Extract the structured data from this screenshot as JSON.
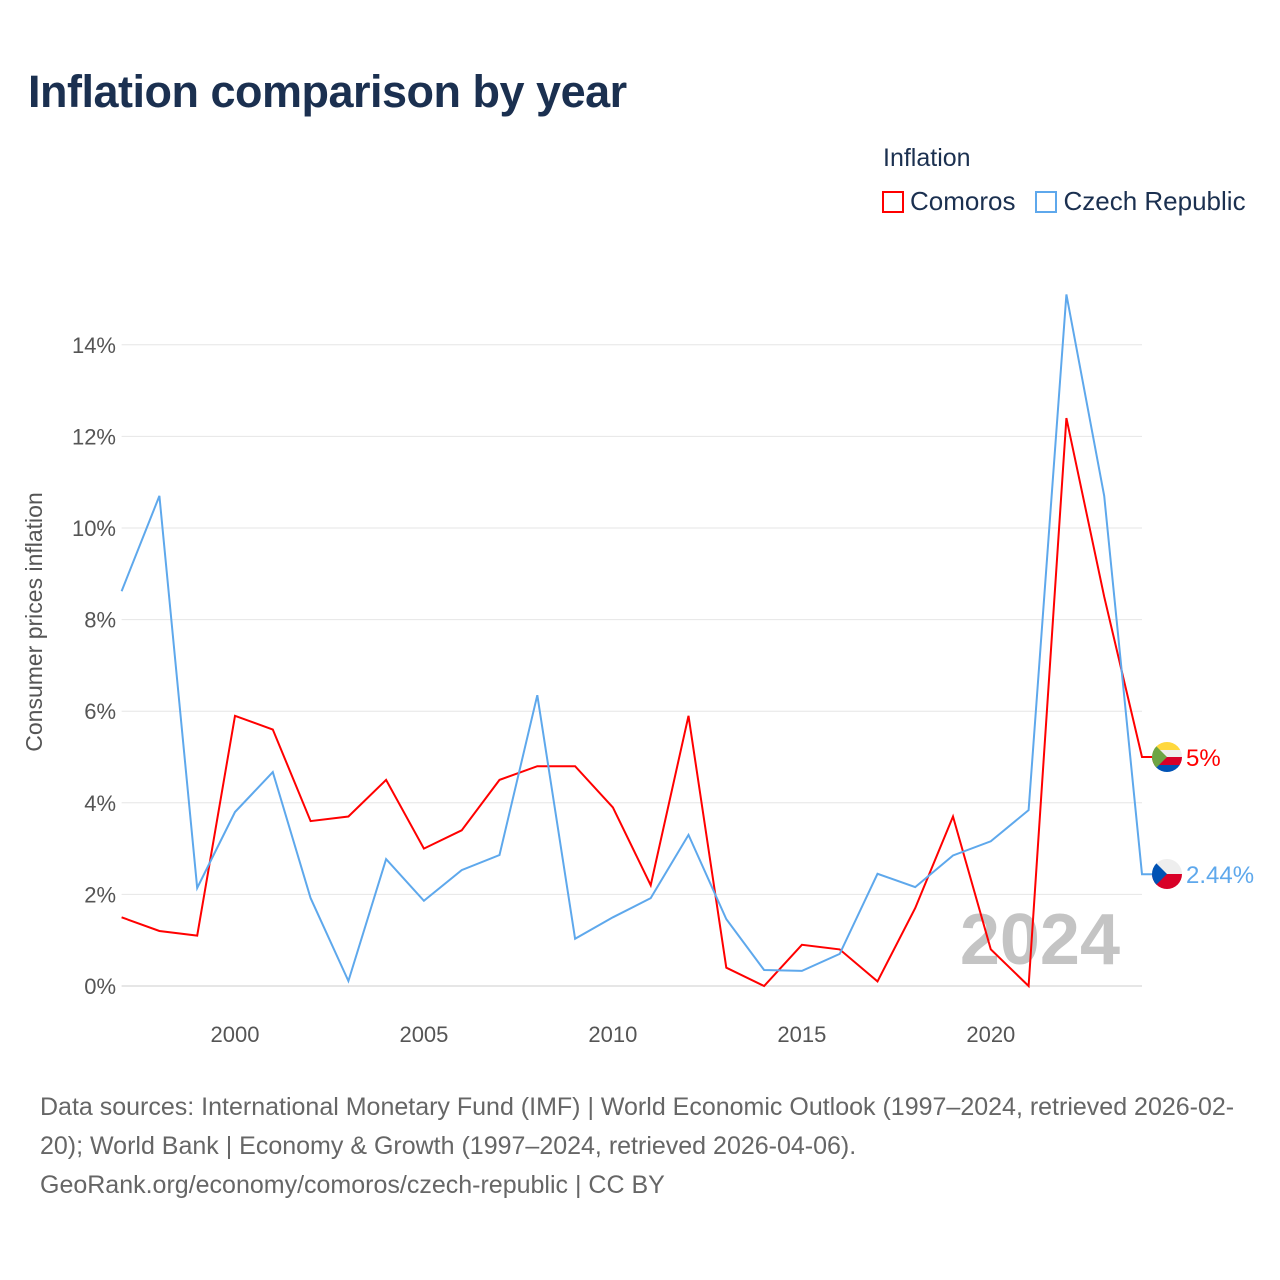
{
  "title": "Inflation comparison by year",
  "legend": {
    "title": "Inflation",
    "items": [
      {
        "name": "Comoros",
        "color": "#ff0000"
      },
      {
        "name": "Czech Republic",
        "color": "#5ea8ec"
      }
    ]
  },
  "chart_data": {
    "type": "line",
    "title": "Inflation comparison by year",
    "xlabel": "",
    "ylabel": "Consumer prices inflation",
    "x": [
      1997,
      1998,
      1999,
      2000,
      2001,
      2002,
      2003,
      2004,
      2005,
      2006,
      2007,
      2008,
      2009,
      2010,
      2011,
      2012,
      2013,
      2014,
      2015,
      2016,
      2017,
      2018,
      2019,
      2020,
      2021,
      2022,
      2023,
      2024
    ],
    "xlim": [
      1997,
      2024
    ],
    "ylim": [
      0,
      15.5
    ],
    "x_ticks": [
      2000,
      2005,
      2010,
      2015,
      2020
    ],
    "y_ticks": [
      0,
      2,
      4,
      6,
      8,
      10,
      12,
      14
    ],
    "y_tick_labels": [
      "0%",
      "2%",
      "4%",
      "6%",
      "8%",
      "10%",
      "12%",
      "14%"
    ],
    "grid": true,
    "legend_position": "top-right",
    "year_watermark": "2024",
    "series": [
      {
        "name": "Comoros",
        "color": "#ff0000",
        "end_label": "5%",
        "values": [
          1.5,
          1.2,
          1.1,
          5.9,
          5.6,
          3.6,
          3.7,
          4.5,
          3.0,
          3.4,
          4.5,
          4.8,
          4.8,
          3.9,
          2.2,
          5.9,
          0.4,
          0.0,
          0.9,
          0.8,
          0.1,
          1.7,
          3.7,
          0.8,
          0.0,
          12.4,
          8.5,
          5.0
        ]
      },
      {
        "name": "Czech Republic",
        "color": "#5ea8ec",
        "end_label": "2.44%",
        "values": [
          8.62,
          10.7,
          2.14,
          3.8,
          4.67,
          1.92,
          0.11,
          2.77,
          1.86,
          2.53,
          2.86,
          6.35,
          1.03,
          1.5,
          1.92,
          3.3,
          1.46,
          0.35,
          0.33,
          0.7,
          2.45,
          2.16,
          2.85,
          3.16,
          3.84,
          15.1,
          10.7,
          2.44
        ]
      }
    ]
  },
  "footer": {
    "sources": "Data sources: International Monetary Fund (IMF) | World Economic Outlook (1997–2024, retrieved 2026-02-20); World Bank | Economy & Growth (1997–2024, retrieved 2026-04-06).",
    "credit": "GeoRank.org/economy/comoros/czech-republic | CC BY"
  }
}
